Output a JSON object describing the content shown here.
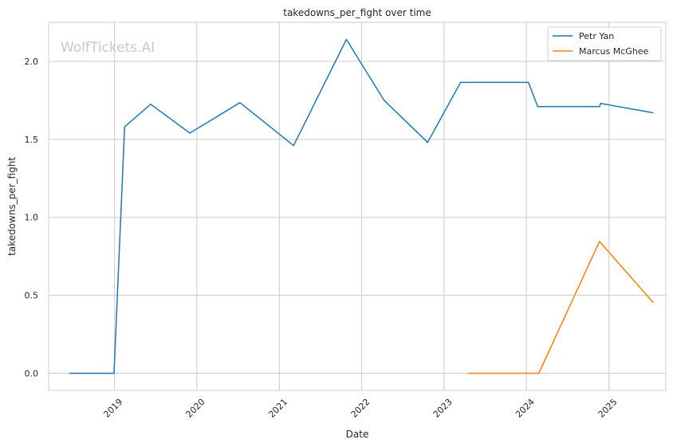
{
  "watermark": "WolfTickets.AI",
  "chart_data": {
    "type": "line",
    "title": "takedowns_per_fight over time",
    "xlabel": "Date",
    "ylabel": "takedowns_per_fight",
    "x_ticks": [
      "2019",
      "2020",
      "2021",
      "2022",
      "2023",
      "2024",
      "2025"
    ],
    "y_ticks": [
      "0.0",
      "0.5",
      "1.0",
      "1.5",
      "2.0"
    ],
    "xlim": [
      "2018-03-15",
      "2025-09-10"
    ],
    "ylim": [
      -0.11,
      2.25
    ],
    "grid": true,
    "legend": "top-right",
    "series": [
      {
        "name": "Petr Yan",
        "color": "#1f77b4",
        "points": [
          {
            "x": "2018-06-15",
            "y": 0.0
          },
          {
            "x": "2018-12-30",
            "y": 0.0
          },
          {
            "x": "2019-02-15",
            "y": 1.58
          },
          {
            "x": "2019-06-10",
            "y": 1.725
          },
          {
            "x": "2019-12-01",
            "y": 1.54
          },
          {
            "x": "2020-07-10",
            "y": 1.735
          },
          {
            "x": "2021-03-05",
            "y": 1.46
          },
          {
            "x": "2021-10-25",
            "y": 2.14
          },
          {
            "x": "2022-04-10",
            "y": 1.75
          },
          {
            "x": "2022-10-20",
            "y": 1.48
          },
          {
            "x": "2023-03-15",
            "y": 1.865
          },
          {
            "x": "2024-01-10",
            "y": 1.865
          },
          {
            "x": "2024-02-20",
            "y": 1.71
          },
          {
            "x": "2024-11-20",
            "y": 1.71
          },
          {
            "x": "2024-11-25",
            "y": 1.73
          },
          {
            "x": "2025-07-15",
            "y": 1.67
          }
        ]
      },
      {
        "name": "Marcus McGhee",
        "color": "#ff7f0e",
        "points": [
          {
            "x": "2023-04-20",
            "y": 0.0
          },
          {
            "x": "2024-02-25",
            "y": 0.0
          },
          {
            "x": "2024-11-20",
            "y": 0.845
          },
          {
            "x": "2025-07-15",
            "y": 0.455
          }
        ]
      }
    ]
  }
}
